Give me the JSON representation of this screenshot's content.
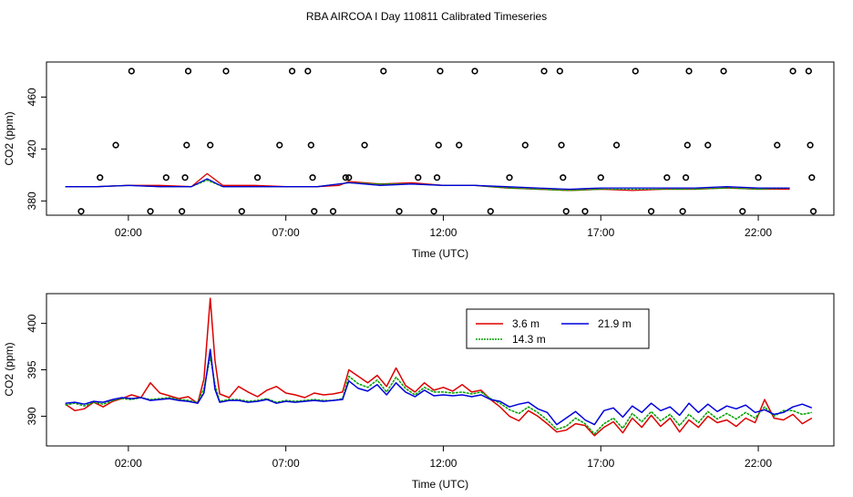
{
  "title": "RBA AIRCOA I  Day 110811  Calibrated Timeseries",
  "colors": {
    "s3_6": "#dd0000",
    "s14_3": "#00a000",
    "s21_9": "#0000dd",
    "points": "#000000"
  },
  "chart_data": [
    {
      "type": "scatter+line",
      "panel": "top",
      "xlabel": "Time (UTC)",
      "ylabel": "CO2 (ppm)",
      "x_unit": "hours UTC",
      "xlim": [
        -0.6,
        24.4
      ],
      "ylim": [
        369,
        487
      ],
      "x_ticks": [
        2,
        7,
        12,
        17,
        22
      ],
      "x_tick_labels": [
        "02:00",
        "07:00",
        "12:00",
        "17:00",
        "22:00"
      ],
      "y_ticks": [
        380,
        420,
        460
      ],
      "y_tick_labels": [
        "380",
        "420",
        "460"
      ],
      "points": [
        {
          "x": 0.5,
          "y": 372
        },
        {
          "x": 1.1,
          "y": 398
        },
        {
          "x": 1.6,
          "y": 423
        },
        {
          "x": 2.1,
          "y": 480
        },
        {
          "x": 2.7,
          "y": 372
        },
        {
          "x": 3.2,
          "y": 398
        },
        {
          "x": 3.7,
          "y": 372
        },
        {
          "x": 3.8,
          "y": 398
        },
        {
          "x": 3.85,
          "y": 423
        },
        {
          "x": 3.9,
          "y": 480
        },
        {
          "x": 4.6,
          "y": 423
        },
        {
          "x": 5.1,
          "y": 480
        },
        {
          "x": 5.6,
          "y": 372
        },
        {
          "x": 6.1,
          "y": 398
        },
        {
          "x": 6.8,
          "y": 423
        },
        {
          "x": 7.2,
          "y": 480
        },
        {
          "x": 7.7,
          "y": 480
        },
        {
          "x": 7.8,
          "y": 423
        },
        {
          "x": 7.85,
          "y": 398
        },
        {
          "x": 7.9,
          "y": 372
        },
        {
          "x": 8.5,
          "y": 372
        },
        {
          "x": 8.9,
          "y": 398
        },
        {
          "x": 9.0,
          "y": 398
        },
        {
          "x": 9.5,
          "y": 423
        },
        {
          "x": 10.1,
          "y": 480
        },
        {
          "x": 10.6,
          "y": 372
        },
        {
          "x": 11.2,
          "y": 398
        },
        {
          "x": 11.7,
          "y": 372
        },
        {
          "x": 11.8,
          "y": 398
        },
        {
          "x": 11.85,
          "y": 423
        },
        {
          "x": 11.9,
          "y": 480
        },
        {
          "x": 12.5,
          "y": 423
        },
        {
          "x": 13.0,
          "y": 480
        },
        {
          "x": 13.5,
          "y": 372
        },
        {
          "x": 14.1,
          "y": 398
        },
        {
          "x": 14.6,
          "y": 423
        },
        {
          "x": 15.2,
          "y": 480
        },
        {
          "x": 15.7,
          "y": 480
        },
        {
          "x": 15.75,
          "y": 423
        },
        {
          "x": 15.8,
          "y": 398
        },
        {
          "x": 15.9,
          "y": 372
        },
        {
          "x": 16.5,
          "y": 372
        },
        {
          "x": 17.0,
          "y": 398
        },
        {
          "x": 17.5,
          "y": 423
        },
        {
          "x": 18.1,
          "y": 480
        },
        {
          "x": 18.6,
          "y": 372
        },
        {
          "x": 19.1,
          "y": 398
        },
        {
          "x": 19.6,
          "y": 372
        },
        {
          "x": 19.7,
          "y": 398
        },
        {
          "x": 19.75,
          "y": 423
        },
        {
          "x": 19.8,
          "y": 480
        },
        {
          "x": 20.4,
          "y": 423
        },
        {
          "x": 20.9,
          "y": 480
        },
        {
          "x": 21.5,
          "y": 372
        },
        {
          "x": 22.0,
          "y": 398
        },
        {
          "x": 22.6,
          "y": 423
        },
        {
          "x": 23.1,
          "y": 480
        },
        {
          "x": 23.6,
          "y": 480
        },
        {
          "x": 23.65,
          "y": 423
        },
        {
          "x": 23.7,
          "y": 398
        },
        {
          "x": 23.75,
          "y": 372
        }
      ],
      "lines": [
        {
          "name": "3.6 m",
          "color": "#dd0000",
          "x": [
            0,
            1,
            2,
            3,
            4,
            4.5,
            5,
            6,
            7,
            8,
            8.7,
            9,
            10,
            11,
            12,
            13,
            14,
            15,
            16,
            17,
            18,
            19,
            20,
            21,
            22,
            23
          ],
          "y": [
            391,
            391,
            392,
            392,
            391,
            401,
            392,
            392,
            391,
            391,
            392,
            395,
            393,
            394,
            392,
            392,
            390,
            389,
            388,
            389,
            388,
            389,
            389,
            390,
            389,
            389
          ]
        },
        {
          "name": "14.3 m",
          "color": "#00a000",
          "x": [
            0,
            1,
            2,
            3,
            4,
            4.5,
            5,
            6,
            7,
            8,
            9,
            10,
            11,
            12,
            13,
            14,
            15,
            16,
            17,
            18,
            19,
            20,
            21,
            22,
            23
          ],
          "y": [
            391,
            391,
            392,
            391,
            391,
            396,
            391,
            391,
            391,
            391,
            394,
            393,
            393,
            392,
            392,
            390,
            389,
            388,
            389,
            389,
            389,
            389,
            390,
            389,
            390
          ]
        },
        {
          "name": "21.9 m",
          "color": "#0000dd",
          "x": [
            0,
            1,
            2,
            3,
            4,
            4.5,
            5,
            6,
            7,
            8,
            9,
            10,
            11,
            12,
            13,
            14,
            15,
            16,
            17,
            18,
            19,
            20,
            21,
            22,
            23
          ],
          "y": [
            391,
            391,
            392,
            391,
            391,
            397,
            391,
            391,
            391,
            391,
            394,
            392,
            393,
            392,
            392,
            391,
            390,
            389,
            390,
            390,
            390,
            390,
            391,
            390,
            390
          ]
        }
      ]
    },
    {
      "type": "line",
      "panel": "bottom",
      "xlabel": "Time (UTC)",
      "ylabel": "CO2 (ppm)",
      "x_unit": "hours UTC",
      "xlim": [
        -0.6,
        24.4
      ],
      "ylim": [
        386.8,
        403.2
      ],
      "x_ticks": [
        2,
        7,
        12,
        17,
        22
      ],
      "x_tick_labels": [
        "02:00",
        "07:00",
        "12:00",
        "17:00",
        "22:00"
      ],
      "y_ticks": [
        390,
        395,
        400
      ],
      "y_tick_labels": [
        "390",
        "395",
        "400"
      ],
      "legend": {
        "position": "top-center",
        "entries": [
          "3.6 m",
          "21.9 m",
          "14.3 m"
        ]
      },
      "series": [
        {
          "name": "3.6 m",
          "color": "#dd0000",
          "x": [
            0,
            0.3,
            0.6,
            0.9,
            1.2,
            1.5,
            1.8,
            2.1,
            2.4,
            2.7,
            3.0,
            3.3,
            3.6,
            3.9,
            4.2,
            4.4,
            4.6,
            4.75,
            4.9,
            5.2,
            5.5,
            5.8,
            6.1,
            6.4,
            6.7,
            7.0,
            7.3,
            7.6,
            7.9,
            8.2,
            8.5,
            8.8,
            9.0,
            9.3,
            9.6,
            9.9,
            10.2,
            10.5,
            10.8,
            11.1,
            11.4,
            11.7,
            12.0,
            12.3,
            12.6,
            12.9,
            13.2,
            13.5,
            13.8,
            14.1,
            14.4,
            14.7,
            15.0,
            15.3,
            15.6,
            15.9,
            16.2,
            16.5,
            16.8,
            17.1,
            17.4,
            17.7,
            18.0,
            18.3,
            18.6,
            18.9,
            19.2,
            19.5,
            19.8,
            20.1,
            20.4,
            20.7,
            21.0,
            21.3,
            21.6,
            21.9,
            22.2,
            22.5,
            22.8,
            23.1,
            23.4,
            23.7
          ],
          "y": [
            391.3,
            390.6,
            390.8,
            391.5,
            391.0,
            391.6,
            391.9,
            392.3,
            392.0,
            393.6,
            392.5,
            392.2,
            391.9,
            392.1,
            391.4,
            394.0,
            402.7,
            396.0,
            392.4,
            392.0,
            393.2,
            392.6,
            392.1,
            392.8,
            393.2,
            392.5,
            392.3,
            392.0,
            392.5,
            392.3,
            392.4,
            392.6,
            395.0,
            394.3,
            393.6,
            394.4,
            393.2,
            395.2,
            393.3,
            392.6,
            393.6,
            392.8,
            393.1,
            392.7,
            393.4,
            392.6,
            392.8,
            391.8,
            391.0,
            390.0,
            389.5,
            390.6,
            390.0,
            389.2,
            388.3,
            388.5,
            389.2,
            389.0,
            387.9,
            388.8,
            389.4,
            388.2,
            389.8,
            388.8,
            390.1,
            388.9,
            389.8,
            388.3,
            389.6,
            388.8,
            390.0,
            389.3,
            389.6,
            388.9,
            389.8,
            389.3,
            391.8,
            389.8,
            389.6,
            390.2,
            389.2,
            389.8
          ]
        },
        {
          "name": "14.3 m",
          "color": "#00a000",
          "x": [
            0,
            0.3,
            0.6,
            0.9,
            1.2,
            1.5,
            1.8,
            2.1,
            2.4,
            2.7,
            3.0,
            3.3,
            3.6,
            3.9,
            4.2,
            4.4,
            4.6,
            4.75,
            4.9,
            5.2,
            5.5,
            5.8,
            6.1,
            6.4,
            6.7,
            7.0,
            7.3,
            7.6,
            7.9,
            8.2,
            8.5,
            8.8,
            9.0,
            9.3,
            9.6,
            9.9,
            10.2,
            10.5,
            10.8,
            11.1,
            11.4,
            11.7,
            12.0,
            12.3,
            12.6,
            12.9,
            13.2,
            13.5,
            13.8,
            14.1,
            14.4,
            14.7,
            15.0,
            15.3,
            15.6,
            15.9,
            16.2,
            16.5,
            16.8,
            17.1,
            17.4,
            17.7,
            18.0,
            18.3,
            18.6,
            18.9,
            19.2,
            19.5,
            19.8,
            20.1,
            20.4,
            20.7,
            21.0,
            21.3,
            21.6,
            21.9,
            22.2,
            22.5,
            22.8,
            23.1,
            23.4,
            23.7
          ],
          "y": [
            391.2,
            391.4,
            391.1,
            391.5,
            391.3,
            391.7,
            391.9,
            391.8,
            392.0,
            391.8,
            391.9,
            392.0,
            391.8,
            391.7,
            391.5,
            393.0,
            396.4,
            393.4,
            391.6,
            391.8,
            391.8,
            391.6,
            391.7,
            391.9,
            391.5,
            391.7,
            391.6,
            391.7,
            391.8,
            391.7,
            391.7,
            391.9,
            394.3,
            393.5,
            393.1,
            393.9,
            392.6,
            394.2,
            393.0,
            392.3,
            393.1,
            392.6,
            392.6,
            392.5,
            392.6,
            392.4,
            392.6,
            391.9,
            391.4,
            390.7,
            390.3,
            391.0,
            390.4,
            389.6,
            388.6,
            388.9,
            389.8,
            389.2,
            388.1,
            389.2,
            389.8,
            388.7,
            390.3,
            389.4,
            390.5,
            389.5,
            390.2,
            389.0,
            390.2,
            389.3,
            390.5,
            389.7,
            390.3,
            389.7,
            390.4,
            389.8,
            391.0,
            390.0,
            390.6,
            390.6,
            390.2,
            390.4
          ]
        },
        {
          "name": "21.9 m",
          "color": "#0000dd",
          "x": [
            0,
            0.3,
            0.6,
            0.9,
            1.2,
            1.5,
            1.8,
            2.1,
            2.4,
            2.7,
            3.0,
            3.3,
            3.6,
            3.9,
            4.2,
            4.4,
            4.6,
            4.75,
            4.9,
            5.2,
            5.5,
            5.8,
            6.1,
            6.4,
            6.7,
            7.0,
            7.3,
            7.6,
            7.9,
            8.2,
            8.5,
            8.8,
            9.0,
            9.3,
            9.6,
            9.9,
            10.2,
            10.5,
            10.8,
            11.1,
            11.4,
            11.7,
            12.0,
            12.3,
            12.6,
            12.9,
            13.2,
            13.5,
            13.8,
            14.1,
            14.4,
            14.7,
            15.0,
            15.3,
            15.6,
            15.9,
            16.2,
            16.5,
            16.8,
            17.1,
            17.4,
            17.7,
            18.0,
            18.3,
            18.6,
            18.9,
            19.2,
            19.5,
            19.8,
            20.1,
            20.4,
            20.7,
            21.0,
            21.3,
            21.6,
            21.9,
            22.2,
            22.5,
            22.8,
            23.1,
            23.4,
            23.7
          ],
          "y": [
            391.4,
            391.5,
            391.3,
            391.6,
            391.5,
            391.8,
            392.0,
            391.9,
            392.0,
            391.7,
            391.8,
            391.9,
            391.7,
            391.6,
            391.4,
            392.5,
            397.2,
            392.9,
            391.5,
            391.7,
            391.7,
            391.5,
            391.6,
            391.8,
            391.4,
            391.6,
            391.5,
            391.6,
            391.7,
            391.6,
            391.7,
            391.8,
            393.8,
            393.0,
            392.7,
            393.4,
            392.3,
            393.6,
            392.6,
            392.1,
            392.8,
            392.2,
            392.3,
            392.2,
            392.3,
            392.1,
            392.3,
            391.8,
            391.6,
            391.0,
            391.3,
            391.5,
            390.8,
            390.4,
            389.1,
            389.8,
            390.5,
            389.6,
            389.1,
            390.6,
            390.9,
            389.9,
            391.1,
            390.4,
            391.4,
            390.6,
            391.0,
            390.1,
            391.4,
            390.4,
            391.3,
            390.5,
            391.1,
            390.8,
            391.2,
            390.4,
            390.7,
            390.2,
            390.4,
            391.0,
            391.3,
            390.9
          ]
        }
      ]
    }
  ]
}
